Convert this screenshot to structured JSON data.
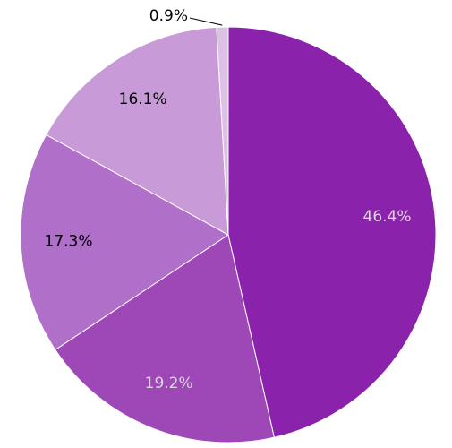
{
  "chart_data": {
    "type": "pie",
    "values": [
      46.4,
      19.2,
      17.3,
      16.1,
      0.9
    ],
    "value_labels": [
      "46.4%",
      "19.2%",
      "17.3%",
      "16.1%",
      "0.9%"
    ],
    "colors": [
      "#8b22ab",
      "#9e48b8",
      "#b06fc8",
      "#c89bd8",
      "#dcc0e6"
    ]
  }
}
